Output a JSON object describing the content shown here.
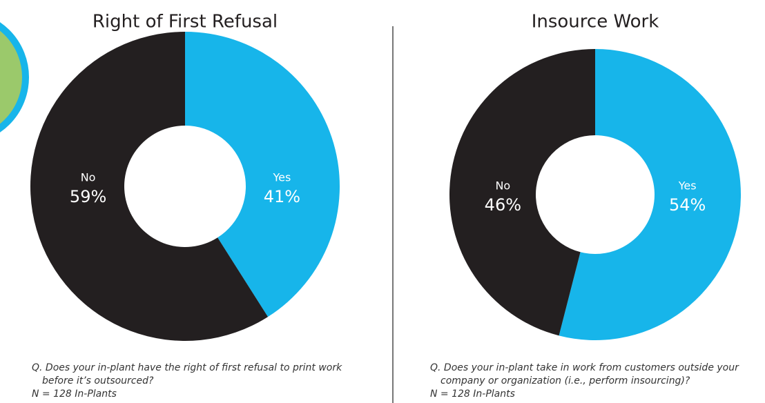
{
  "chart_data": [
    {
      "type": "donut",
      "title": "Right of First Refusal",
      "categories": [
        "Yes",
        "No"
      ],
      "values": [
        41,
        59
      ],
      "value_labels": [
        "41%",
        "59%"
      ],
      "colors": [
        "#17b5ea",
        "#231f20"
      ],
      "caption": [
        "Q. Does your in-plant have the right of first refusal to print work",
        "before it’s outsourced?"
      ],
      "sample": "N = 128 In-Plants"
    },
    {
      "type": "donut",
      "title": "Insource Work",
      "categories": [
        "Yes",
        "No"
      ],
      "values": [
        54,
        46
      ],
      "value_labels": [
        "54%",
        "46%"
      ],
      "colors": [
        "#17b5ea",
        "#231f20"
      ],
      "caption": [
        "Q. Does your in-plant take in work from customers outside your",
        "company or organization (i.e., perform insourcing)?"
      ],
      "sample": "N = 128 In-Plants"
    }
  ]
}
